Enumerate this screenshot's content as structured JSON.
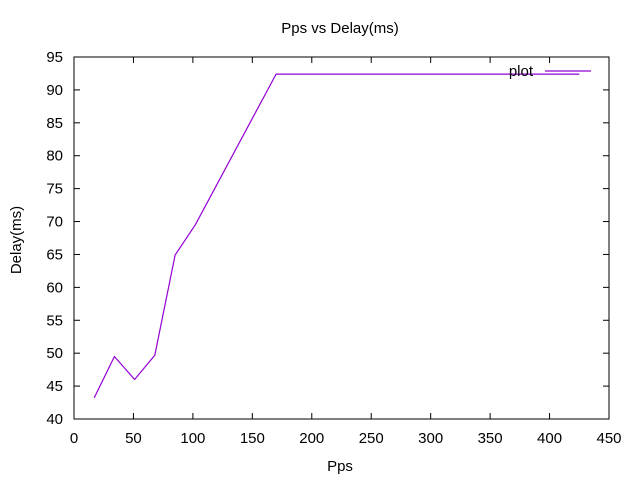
{
  "chart_data": {
    "type": "line",
    "title": "Pps vs Delay(ms)",
    "xlabel": "Pps",
    "ylabel": "Delay(ms)",
    "xlim": [
      0,
      450
    ],
    "ylim": [
      40,
      95
    ],
    "x_ticks": [
      0,
      50,
      100,
      150,
      200,
      250,
      300,
      350,
      400,
      450
    ],
    "y_ticks": [
      40,
      45,
      50,
      55,
      60,
      65,
      70,
      75,
      80,
      85,
      90,
      95
    ],
    "legend_position": "top-right",
    "grid": false,
    "series": [
      {
        "name": "plot",
        "color": "#9400d3",
        "x": [
          17,
          34,
          51,
          68,
          85,
          102,
          170,
          255,
          340,
          425
        ],
        "y": [
          43.2,
          49.5,
          46.0,
          49.7,
          64.9,
          69.5,
          92.4,
          92.4,
          92.4,
          92.4
        ]
      }
    ]
  }
}
